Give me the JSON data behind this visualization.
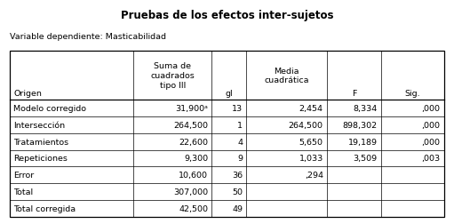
{
  "title": "Pruebas de los efectos inter-sujetos",
  "subtitle": "Variable dependiente: Masticabilidad",
  "rows": [
    [
      "Modelo corregido",
      "31,900ᵃ",
      "13",
      "2,454",
      "8,334",
      ",000"
    ],
    [
      "Intersección",
      "264,500",
      "1",
      "264,500",
      "898,302",
      ",000"
    ],
    [
      "Tratamientos",
      "22,600",
      "4",
      "5,650",
      "19,189",
      ",000"
    ],
    [
      "Repeticiones",
      "9,300",
      "9",
      "1,033",
      "3,509",
      ",003"
    ],
    [
      "Error",
      "10,600",
      "36",
      ",294",
      "",
      ""
    ],
    [
      "Total",
      "307,000",
      "50",
      "",
      "",
      ""
    ],
    [
      "Total corregida",
      "42,500",
      "49",
      "",
      "",
      ""
    ]
  ],
  "background_color": "#ffffff",
  "border_color": "#000000",
  "font_size": 6.8,
  "title_fontsize": 8.5,
  "subtitle_fontsize": 6.8
}
